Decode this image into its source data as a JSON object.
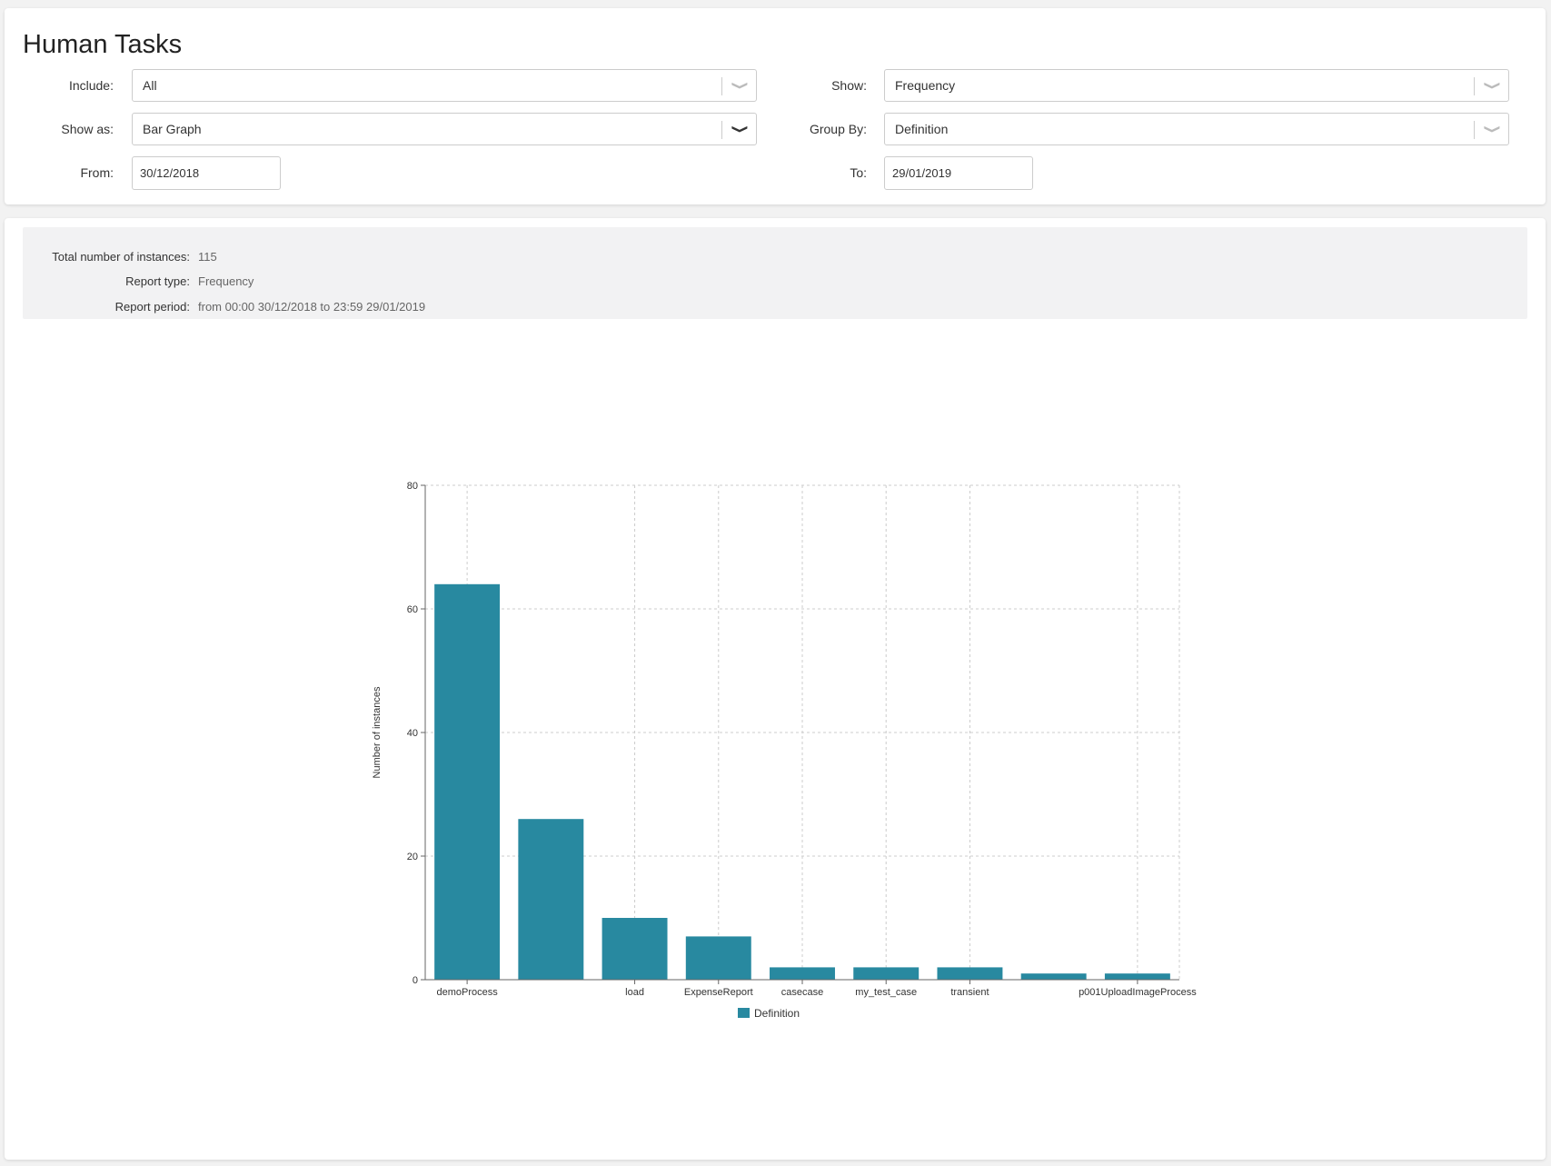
{
  "header": {
    "title": "Human Tasks"
  },
  "filters": {
    "include": {
      "label": "Include:",
      "value": "All"
    },
    "show": {
      "label": "Show:",
      "value": "Frequency"
    },
    "show_as": {
      "label": "Show as:",
      "value": "Bar Graph"
    },
    "group_by": {
      "label": "Group By:",
      "value": "Definition"
    },
    "from": {
      "label": "From:",
      "value": "30/12/2018"
    },
    "to": {
      "label": "To:",
      "value": "29/01/2019"
    }
  },
  "summary": {
    "total_label": "Total number of instances:",
    "total_value": "115",
    "type_label": "Report type:",
    "type_value": "Frequency",
    "period_label": "Report period:",
    "period_value": "from 00:00 30/12/2018 to 23:59 29/01/2019"
  },
  "icons": {
    "dropdown": "chevron-down-icon"
  },
  "chart_data": {
    "type": "bar",
    "categories": [
      "demoProcess",
      "",
      "load",
      "ExpenseReport",
      "casecase",
      "my_test_case",
      "transient",
      "",
      "p001UploadImageProcess"
    ],
    "series": [
      {
        "name": "Definition",
        "values": [
          64,
          26,
          10,
          7,
          2,
          2,
          2,
          1,
          1
        ],
        "color": "#2889a0"
      }
    ],
    "ylabel": "Number of instances",
    "xlabel": "",
    "ylim": [
      0,
      80
    ],
    "yticks": [
      0,
      20,
      40,
      60,
      80
    ],
    "grid": true,
    "legend": "bottom"
  }
}
